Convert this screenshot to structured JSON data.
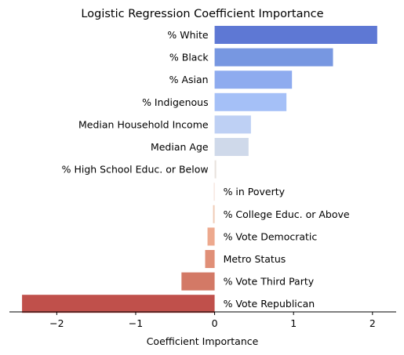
{
  "chart_data": {
    "type": "bar",
    "orientation": "horizontal",
    "title": "Logistic Regression Coefficient Importance",
    "xlabel": "Coefficient Importance",
    "ylabel": "",
    "xlim": [
      -2.6,
      2.3
    ],
    "xticks": [
      -2,
      -1,
      0,
      1,
      2
    ],
    "xtick_labels": [
      "−2",
      "−1",
      "0",
      "1",
      "2"
    ],
    "grid": false,
    "categories": [
      "% White",
      "% Black",
      "% Asian",
      "% Indigenous",
      "Median Household Income",
      "Median Age",
      "% High School Educ. or Below",
      "% in Poverty",
      "% College Educ. or Above",
      "% Vote Democratic",
      "Metro Status",
      "% Vote Third Party",
      "% Vote Republican"
    ],
    "values": [
      2.06,
      1.5,
      0.98,
      0.91,
      0.46,
      0.43,
      0.02,
      -0.01,
      -0.02,
      -0.09,
      -0.12,
      -0.42,
      -2.44
    ],
    "colors": [
      "#5e78d4",
      "#7797e1",
      "#8eabef",
      "#a5c0f7",
      "#bed0f4",
      "#cfd9ea",
      "#e8e2dd",
      "#f2ddd2",
      "#f0cbb6",
      "#eda98e",
      "#e08f77",
      "#d37966",
      "#c0504b"
    ]
  }
}
